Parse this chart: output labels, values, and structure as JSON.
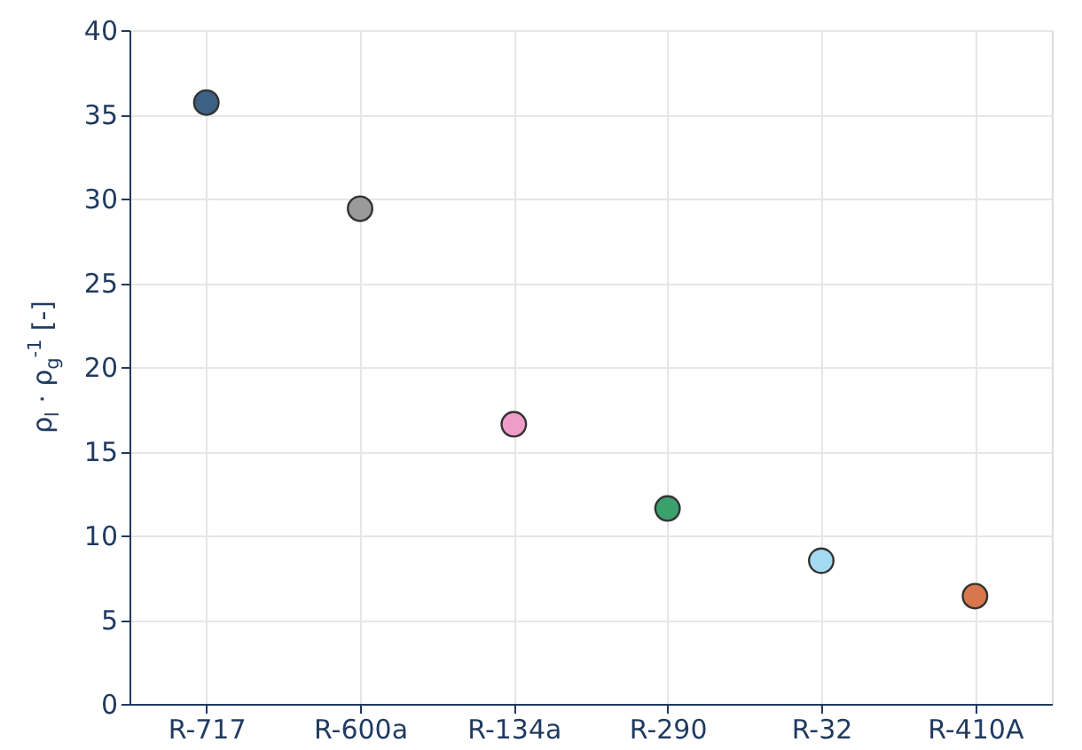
{
  "chart_data": {
    "type": "scatter",
    "ylabel": "ρ$_{l}$ · ρ$_{g}$$^{-1}$ [-]",
    "categories": [
      "R-717",
      "R-600a",
      "R-134a",
      "R-290",
      "R-32",
      "R-410A"
    ],
    "values": [
      35.7,
      29.4,
      16.6,
      11.6,
      8.5,
      6.4
    ],
    "colors": [
      "#3d6184",
      "#9a9a9a",
      "#f09cc8",
      "#3aa06c",
      "#a3daf2",
      "#d9774c"
    ],
    "ylim": [
      0,
      40
    ],
    "yticks": [
      0,
      5,
      10,
      15,
      20,
      25,
      30,
      35,
      40
    ],
    "grid": true,
    "marker": "circle"
  }
}
